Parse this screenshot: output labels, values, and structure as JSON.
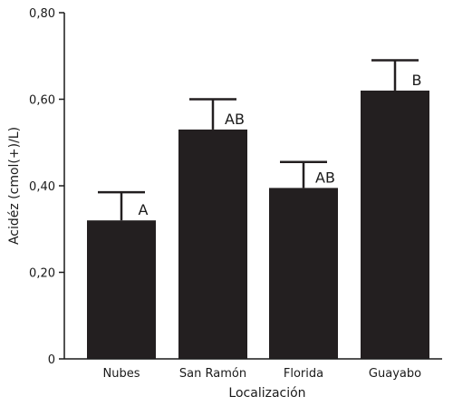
{
  "chart_data": {
    "type": "bar",
    "categories": [
      "Nubes",
      "San Ramón",
      "Florida",
      "Guayabo"
    ],
    "values": [
      0.32,
      0.53,
      0.395,
      0.62
    ],
    "error_upper": [
      0.385,
      0.6,
      0.455,
      0.69
    ],
    "significance_letters": [
      "A",
      "AB",
      "AB",
      "B"
    ],
    "xlabel": "Localización",
    "ylabel": "Acidéz (cmol(+)/L)",
    "ylim": [
      0,
      0.8
    ],
    "yticks": [
      0,
      0.2,
      0.4,
      0.6,
      0.8
    ],
    "ytick_labels": [
      "0",
      "0,20",
      "0,40",
      "0,60",
      "0,80"
    ],
    "grid": false,
    "bar_color": "#231f20"
  }
}
